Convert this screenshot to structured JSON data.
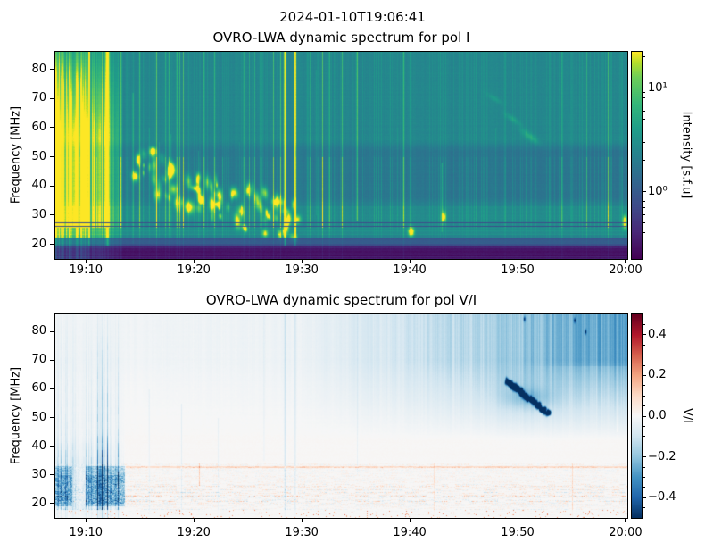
{
  "suptitle": "2024-01-10T19:06:41",
  "chart_data": [
    {
      "type": "heatmap",
      "title": "OVRO-LWA dynamic spectrum for pol I",
      "xlabel": "",
      "ylabel": "Frequency [MHz]",
      "x_range_seconds": [
        0,
        3180
      ],
      "x_start_time": "19:07:10",
      "x_ticks": [
        {
          "label": "19:10",
          "t": 170
        },
        {
          "label": "19:20",
          "t": 770
        },
        {
          "label": "19:30",
          "t": 1370
        },
        {
          "label": "19:40",
          "t": 1970
        },
        {
          "label": "19:50",
          "t": 2570
        },
        {
          "label": "20:00",
          "t": 3170
        }
      ],
      "y_range_mhz": [
        15,
        86
      ],
      "y_ticks": [
        {
          "label": "20",
          "f": 20
        },
        {
          "label": "30",
          "f": 30
        },
        {
          "label": "40",
          "f": 40
        },
        {
          "label": "50",
          "f": 50
        },
        {
          "label": "60",
          "f": 60
        },
        {
          "label": "70",
          "f": 70
        },
        {
          "label": "80",
          "f": 80
        }
      ],
      "grid": false,
      "colormap": "viridis",
      "colorbar": {
        "label": "Intensity [s.f.u]",
        "scale": "log",
        "range_log10": [
          -0.65,
          1.35
        ],
        "ticks": [
          {
            "label": "10¹",
            "log10": 1
          },
          {
            "label": "10⁰",
            "log10": 0
          }
        ]
      },
      "features": {
        "background_level": 0.5,
        "left_burst": {
          "t_end": 370,
          "solid_until": 185
        },
        "bands_mhz": [
          {
            "f": [
              15,
              19.6
            ],
            "level": 0.09,
            "note": "dark purple RFI floor"
          },
          {
            "f": [
              19.6,
              22.3
            ],
            "level": 0.31,
            "note": "slate blue band"
          },
          {
            "f": [
              22.3,
              25.7
            ],
            "level": 0.53,
            "note": "bright green bursty band"
          }
        ],
        "dark_lines_mhz": [
          26.05,
          27.25
        ],
        "vertical_lines": [
          {
            "t": 288,
            "s": 9,
            "f": [
              15,
              86
            ],
            "a": 0.9
          },
          {
            "t": 186,
            "s": 4,
            "f": [
              15,
              86
            ],
            "a": 0.55
          },
          {
            "t": 1277,
            "s": 5,
            "f": [
              15,
              86
            ],
            "a": 1.0
          },
          {
            "t": 1333,
            "s": 5,
            "f": [
              15,
              86
            ],
            "a": 0.7
          },
          {
            "t": 1678,
            "s": 4,
            "f": [
              28,
              86
            ],
            "a": 0.28
          },
          {
            "t": 430,
            "s": 3,
            "f": [
              20,
              72
            ],
            "a": 0.2
          },
          {
            "t": 520,
            "s": 2,
            "f": [
              20,
              60
            ],
            "a": 0.16
          },
          {
            "t": 575,
            "s": 2,
            "f": [
              22,
              55
            ],
            "a": 0.15
          },
          {
            "t": 640,
            "s": 2,
            "f": [
              22,
              58
            ],
            "a": 0.14
          },
          {
            "t": 795,
            "s": 2,
            "f": [
              22,
              52
            ],
            "a": 0.12
          },
          {
            "t": 930,
            "s": 2,
            "f": [
              22,
              50
            ],
            "a": 0.12
          },
          {
            "t": 1025,
            "s": 2,
            "f": [
              25,
              55
            ],
            "a": 0.1
          },
          {
            "t": 1155,
            "s": 3,
            "f": [
              35,
              86
            ],
            "a": 0.1
          },
          {
            "t": 1450,
            "s": 2,
            "f": [
              30,
              80
            ],
            "a": 0.08
          },
          {
            "t": 1905,
            "s": 2,
            "f": [
              24,
              60
            ],
            "a": 0.1
          },
          {
            "t": 2150,
            "s": 3,
            "f": [
              24,
              48
            ],
            "a": 0.22
          },
          {
            "t": 2450,
            "s": 2,
            "f": [
              28,
              60
            ],
            "a": 0.08
          },
          {
            "t": 2860,
            "s": 2,
            "f": [
              30,
              65
            ],
            "a": 0.07
          }
        ],
        "type3_cluster": {
          "count": 85,
          "t": [
            420,
            1350
          ],
          "f_hi_start": 47,
          "f_hi_end": 26,
          "spread": 8,
          "amp": [
            0.15,
            0.6
          ]
        },
        "blobs": [
          {
            "t": 1979,
            "f": 24.2,
            "rt": 16,
            "rf": 1.5,
            "a": 0.85
          },
          {
            "t": 2160,
            "f": 29.3,
            "rt": 12,
            "rf": 1.7,
            "a": 0.6
          },
          {
            "t": 3168,
            "f": 27.5,
            "rt": 10,
            "rf": 2.2,
            "a": 0.7
          },
          {
            "t": 2640,
            "f": 57,
            "rt": 48,
            "rf": 1.4,
            "a": 0.16,
            "slope": -0.04
          },
          {
            "t": 2545,
            "f": 63,
            "rt": 42,
            "rf": 1.1,
            "a": 0.12,
            "slope": -0.038
          },
          {
            "t": 2445,
            "f": 70,
            "rt": 40,
            "rf": 1.0,
            "a": 0.09,
            "slope": -0.035
          }
        ]
      }
    },
    {
      "type": "heatmap",
      "title": "OVRO-LWA dynamic spectrum for pol V/I",
      "xlabel": "",
      "ylabel": "Frequency [MHz]",
      "x_range_seconds": [
        0,
        3180
      ],
      "x_ticks": [
        {
          "label": "19:10",
          "t": 170
        },
        {
          "label": "19:20",
          "t": 770
        },
        {
          "label": "19:30",
          "t": 1370
        },
        {
          "label": "19:40",
          "t": 1970
        },
        {
          "label": "19:50",
          "t": 2570
        },
        {
          "label": "20:00",
          "t": 3170
        }
      ],
      "y_range_mhz": [
        15,
        86
      ],
      "y_ticks": [
        {
          "label": "20",
          "f": 20
        },
        {
          "label": "30",
          "f": 30
        },
        {
          "label": "40",
          "f": 40
        },
        {
          "label": "50",
          "f": 50
        },
        {
          "label": "60",
          "f": 60
        },
        {
          "label": "70",
          "f": 70
        },
        {
          "label": "80",
          "f": 80
        }
      ],
      "grid": false,
      "colormap": "rdbu",
      "colorbar": {
        "label": "V/I",
        "scale": "linear",
        "range": [
          -0.5,
          0.5
        ],
        "minor_step": 0.05,
        "ticks": [
          {
            "label": "0.4",
            "v": 0.4
          },
          {
            "label": "0.2",
            "v": 0.2
          },
          {
            "label": "0.0",
            "v": 0.0
          },
          {
            "label": "−0.2",
            "v": -0.2
          },
          {
            "label": "−0.4",
            "v": -0.4
          }
        ]
      },
      "features": {
        "left_streaks": {
          "t_end": 385
        },
        "dark_patches": [
          {
            "t": [
              0,
              90
            ],
            "f": [
              19,
              33
            ]
          },
          {
            "t": [
              165,
              385
            ],
            "f": [
              19,
              33
            ]
          }
        ],
        "right_shade": {
          "t_start": 1350,
          "f_start": 42,
          "max_vi": -0.26
        },
        "drift_streak": {
          "t": [
            2510,
            2750
          ],
          "f": [
            63,
            51
          ],
          "amp": -0.42
        },
        "vertical_lines": [
          {
            "t": 1277,
            "s": 5,
            "f": [
              15,
              86
            ],
            "a": -0.09
          },
          {
            "t": 1333,
            "s": 5,
            "f": [
              15,
              86
            ],
            "a": -0.06
          },
          {
            "t": 700,
            "s": 3,
            "f": [
              15,
              55
            ],
            "a": -0.05
          },
          {
            "t": 520,
            "s": 3,
            "f": [
              15,
              60
            ],
            "a": -0.045
          },
          {
            "t": 905,
            "s": 3,
            "f": [
              15,
              50
            ],
            "a": -0.04
          },
          {
            "t": 1160,
            "s": 3,
            "f": [
              35,
              86
            ],
            "a": -0.04
          },
          {
            "t": 1680,
            "s": 3,
            "f": [
              30,
              86
            ],
            "a": -0.04
          },
          {
            "t": 2108,
            "s": 2,
            "f": [
              15,
              34
            ],
            "a": 0.1
          },
          {
            "t": 2877,
            "s": 2,
            "f": [
              15,
              34
            ],
            "a": 0.09
          },
          {
            "t": 800,
            "s": 2,
            "f": [
              26,
              34
            ],
            "a": 0.12
          },
          {
            "t": 3128,
            "s": 2,
            "f": [
              45,
              86
            ],
            "a": 0.12
          }
        ],
        "rfi_rows": {
          "f_max": 33.8,
          "orange_line_mhz": 32.55,
          "red_speckle_below_mhz": 17.6
        },
        "dots": [
          {
            "t": 2950,
            "f": 80
          },
          {
            "t": 2890,
            "f": 84
          },
          {
            "t": 2610,
            "f": 84.5
          }
        ]
      }
    }
  ]
}
